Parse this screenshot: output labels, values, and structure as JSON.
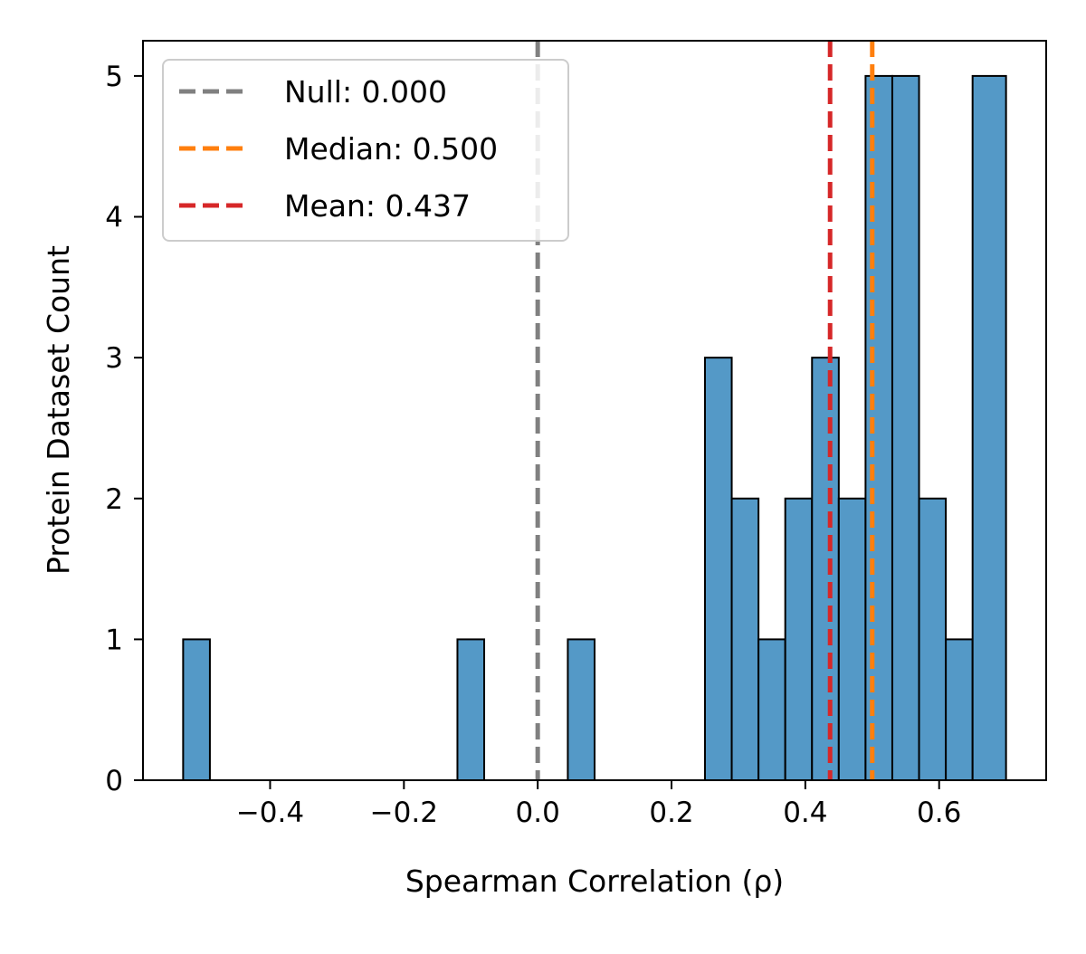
{
  "chart_data": {
    "type": "bar",
    "subtype": "histogram",
    "xlabel": "Spearman Correlation (ρ)",
    "ylabel": "Protein Dataset Count",
    "xlim": [
      -0.59,
      0.76
    ],
    "ylim": [
      0,
      5.25
    ],
    "x_ticks": [
      -0.4,
      -0.2,
      0.0,
      0.2,
      0.4,
      0.6
    ],
    "x_tick_labels": [
      "−0.4",
      "−0.2",
      "0.0",
      "0.2",
      "0.4",
      "0.6"
    ],
    "y_ticks": [
      0,
      1,
      2,
      3,
      4,
      5
    ],
    "y_tick_labels": [
      "0",
      "1",
      "2",
      "3",
      "4",
      "5"
    ],
    "bar_color": "#5499c7",
    "bins": [
      {
        "x0": -0.53,
        "x1": -0.49,
        "count": 1
      },
      {
        "x0": -0.12,
        "x1": -0.08,
        "count": 1
      },
      {
        "x0": 0.045,
        "x1": 0.085,
        "count": 1
      },
      {
        "x0": 0.25,
        "x1": 0.29,
        "count": 3
      },
      {
        "x0": 0.29,
        "x1": 0.33,
        "count": 2
      },
      {
        "x0": 0.33,
        "x1": 0.37,
        "count": 1
      },
      {
        "x0": 0.37,
        "x1": 0.41,
        "count": 2
      },
      {
        "x0": 0.41,
        "x1": 0.45,
        "count": 3
      },
      {
        "x0": 0.45,
        "x1": 0.49,
        "count": 2
      },
      {
        "x0": 0.49,
        "x1": 0.53,
        "count": 5
      },
      {
        "x0": 0.53,
        "x1": 0.57,
        "count": 5
      },
      {
        "x0": 0.57,
        "x1": 0.61,
        "count": 2
      },
      {
        "x0": 0.61,
        "x1": 0.65,
        "count": 1
      },
      {
        "x0": 0.65,
        "x1": 0.7,
        "count": 5
      }
    ],
    "reference_lines": [
      {
        "label": "Null: 0.000",
        "x": 0.0,
        "color": "#808080"
      },
      {
        "label": "Median: 0.500",
        "x": 0.5,
        "color": "#ff7f0e"
      },
      {
        "label": "Mean: 0.437",
        "x": 0.437,
        "color": "#d62728"
      }
    ],
    "legend_position": "top-left"
  }
}
